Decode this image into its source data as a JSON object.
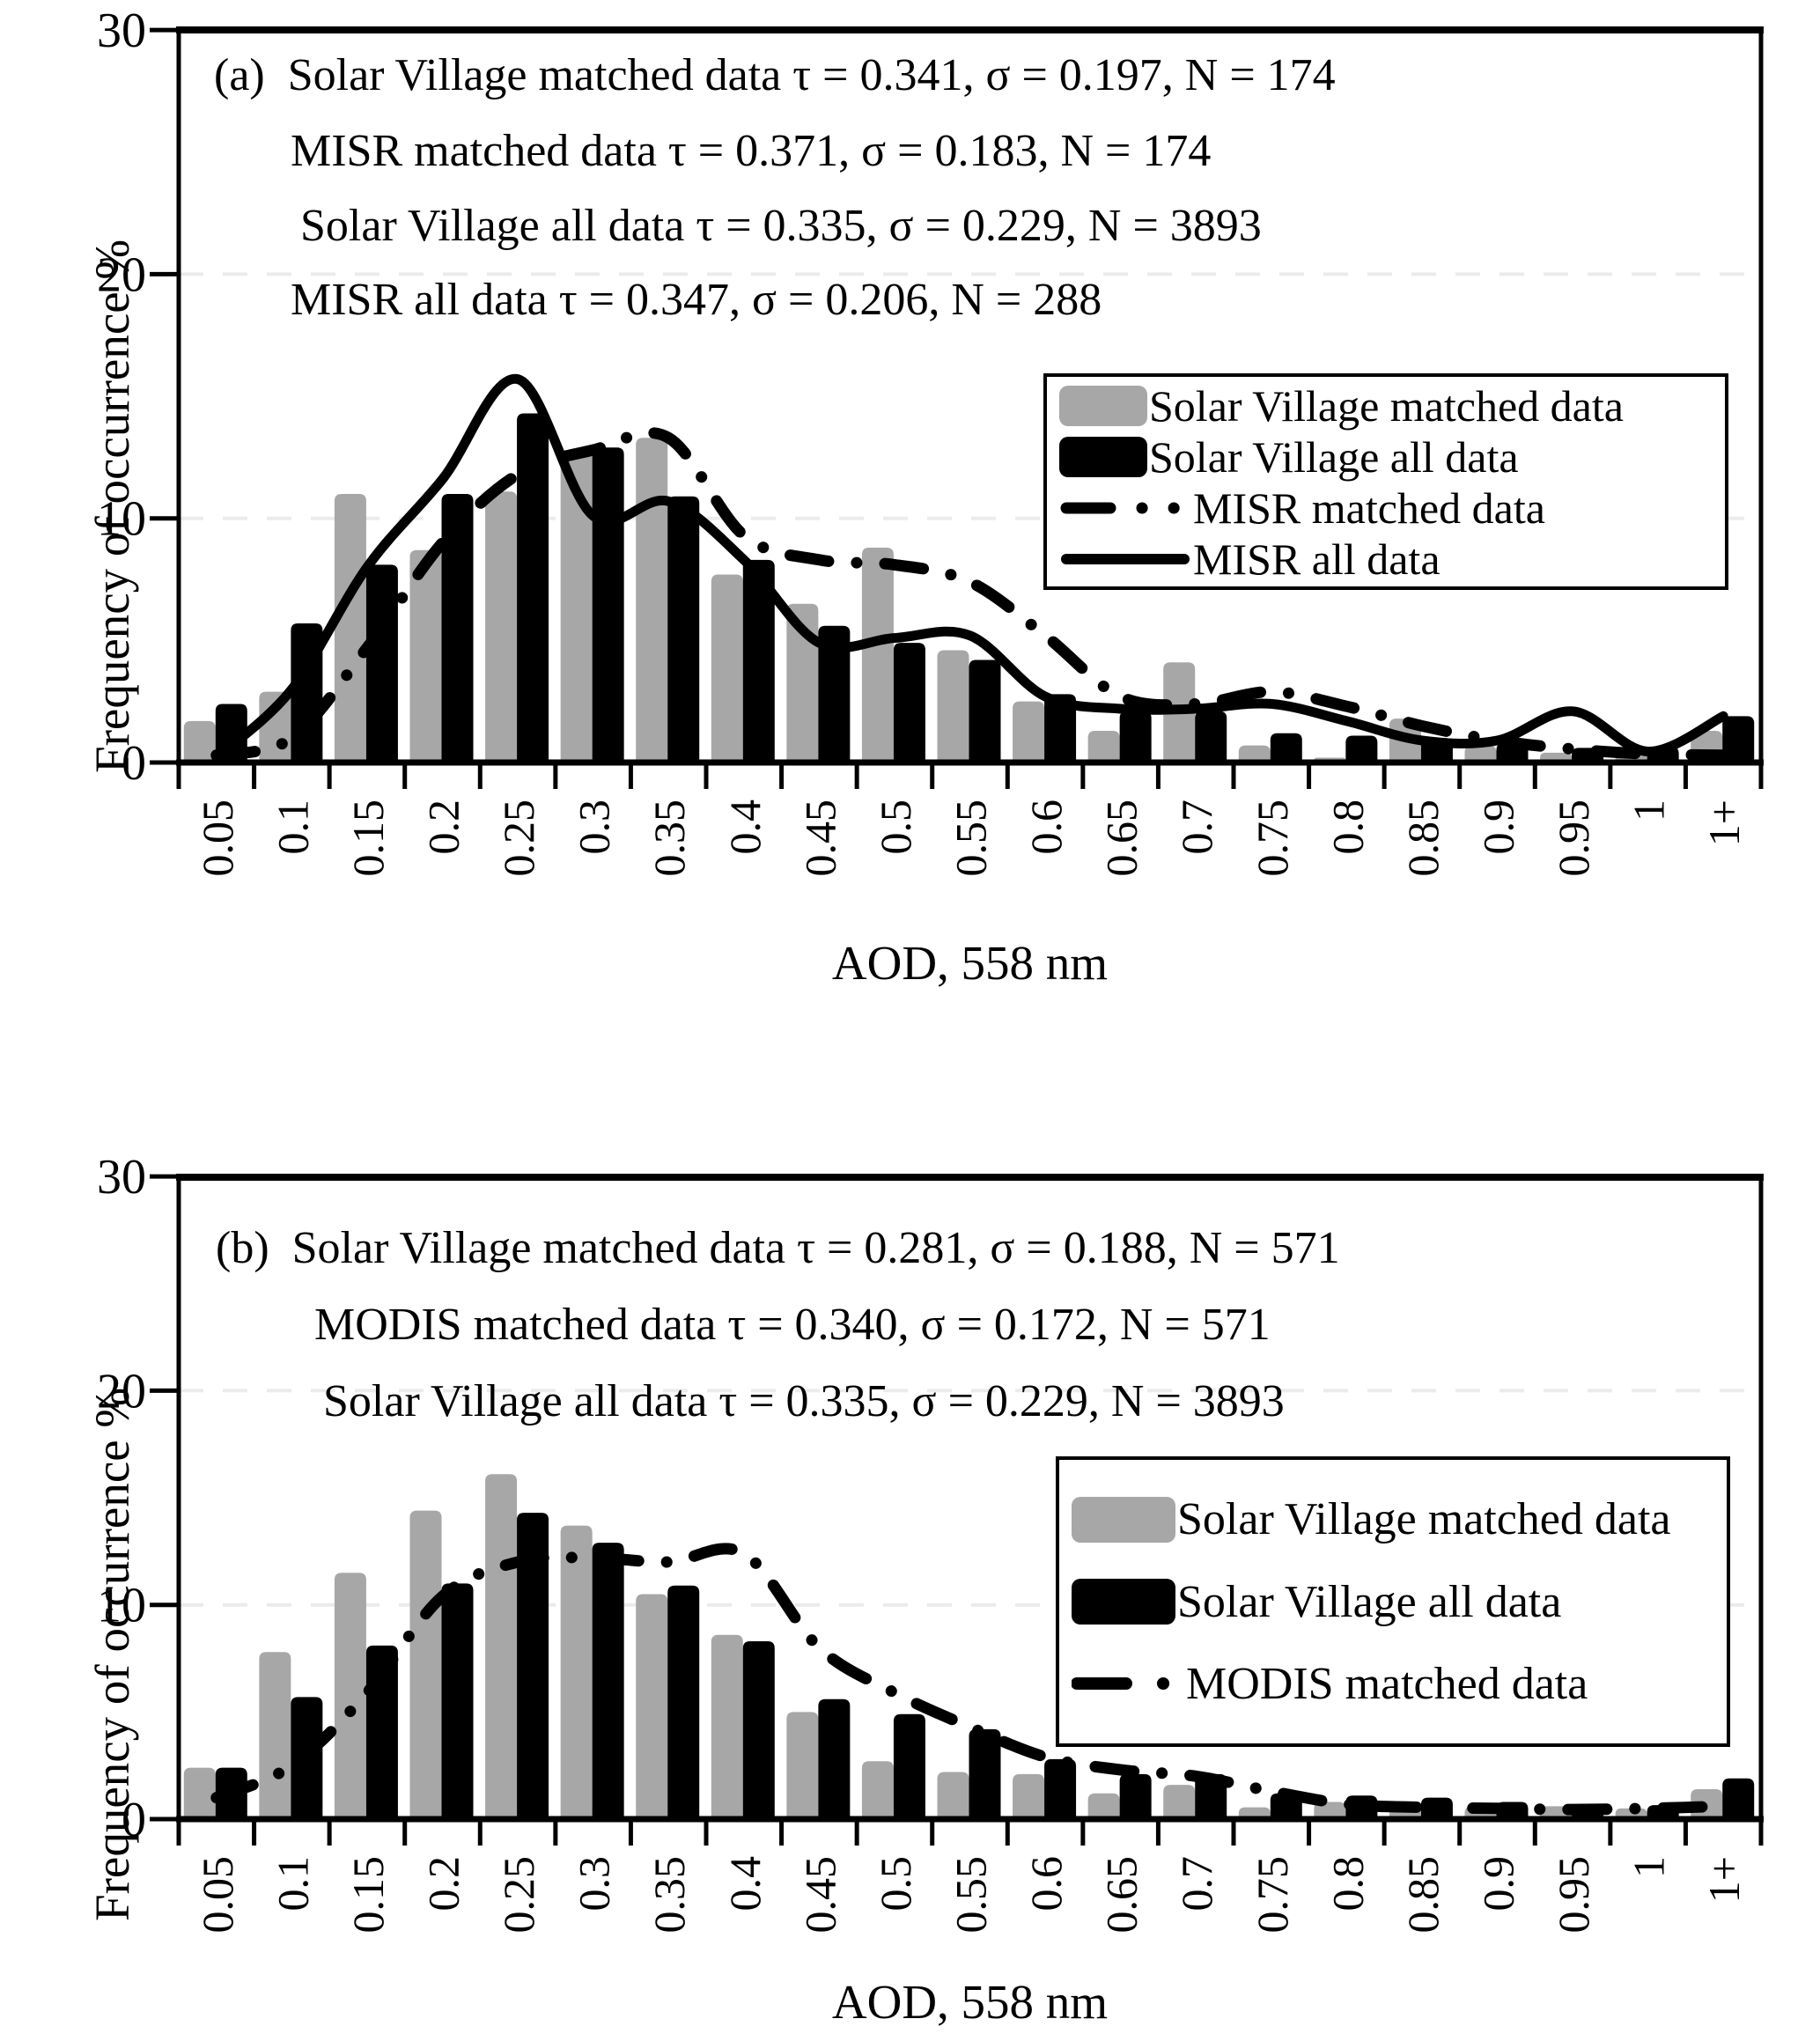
{
  "figure": {
    "panel_count": 2,
    "background": "#ffffff",
    "colors": {
      "bar_gray": "#a7a7a7",
      "bar_black": "#000000",
      "line": "#000000",
      "gridline": "#ebebeb"
    }
  },
  "chart_data": [
    {
      "type": "bar",
      "panel_tag": "(a)",
      "annotations": [
        "Solar Village matched data τ = 0.341, σ = 0.197, N = 174",
        "MISR matched data τ = 0.371, σ = 0.183, N = 174",
        "Solar Village all data τ = 0.335, σ = 0.229, N = 3893",
        "MISR all data τ = 0.347, σ = 0.206, N = 288"
      ],
      "categories": [
        "0.05",
        "0.1",
        "0.15",
        "0.2",
        "0.25",
        "0.3",
        "0.35",
        "0.4",
        "0.45",
        "0.5",
        "0.55",
        "0.6",
        "0.65",
        "0.7",
        "0.75",
        "0.8",
        "0.85",
        "0.9",
        "0.95",
        "1",
        "1+"
      ],
      "series": [
        {
          "name": "Solar Village matched data",
          "kind": "bar",
          "color": "#a7a7a7",
          "values": [
            1.7,
            2.9,
            11.0,
            8.7,
            11.1,
            12.8,
            13.3,
            7.7,
            6.5,
            8.8,
            4.6,
            2.5,
            1.3,
            4.1,
            0.7,
            0.2,
            1.8,
            0.7,
            0.4,
            0.6,
            1.3
          ]
        },
        {
          "name": "Solar Village all data",
          "kind": "bar",
          "color": "#000000",
          "values": [
            2.4,
            5.7,
            8.1,
            11.0,
            14.3,
            12.9,
            10.9,
            8.3,
            5.6,
            4.9,
            4.2,
            2.8,
            2.1,
            2.1,
            1.2,
            1.1,
            1.0,
            0.8,
            0.6,
            0.65,
            1.9
          ]
        },
        {
          "name": "MISR matched data",
          "kind": "line",
          "style": "dash-dot",
          "color": "#000000",
          "values": [
            0.3,
            1.0,
            4.7,
            9.0,
            11.8,
            12.8,
            13.3,
            9.3,
            8.3,
            8.1,
            7.4,
            5.2,
            2.7,
            2.4,
            2.9,
            2.3,
            1.5,
            0.9,
            0.55,
            0.35,
            0.3
          ]
        },
        {
          "name": "MISR all data",
          "kind": "line",
          "style": "solid",
          "color": "#000000",
          "values": [
            0.2,
            3.0,
            8.0,
            11.6,
            15.7,
            10.1,
            10.7,
            8.3,
            4.9,
            5.1,
            5.2,
            2.7,
            2.2,
            2.2,
            2.4,
            1.7,
            0.9,
            0.9,
            2.1,
            0.45,
            1.9
          ]
        }
      ],
      "xlabel": "AOD, 558 nm",
      "ylabel": "Frequency of occurrence %",
      "ylim": [
        0,
        30
      ],
      "yticks": [
        0,
        10,
        20,
        30
      ],
      "grid": "light dashed horizontal lines at 10 and 20",
      "legend_position": "upper right inside plot"
    },
    {
      "type": "bar",
      "panel_tag": "(b)",
      "annotations": [
        "Solar Village matched data τ = 0.281, σ = 0.188, N = 571",
        "MODIS matched data τ = 0.340, σ = 0.172, N = 571",
        "Solar Village all data τ = 0.335, σ = 0.229, N = 3893"
      ],
      "categories": [
        "0.05",
        "0.1",
        "0.15",
        "0.2",
        "0.25",
        "0.3",
        "0.35",
        "0.4",
        "0.45",
        "0.5",
        "0.55",
        "0.6",
        "0.65",
        "0.7",
        "0.75",
        "0.8",
        "0.85",
        "0.9",
        "0.95",
        "1",
        "1+"
      ],
      "series": [
        {
          "name": "Solar Village matched data",
          "kind": "bar",
          "color": "#a7a7a7",
          "values": [
            2.4,
            7.8,
            11.5,
            14.4,
            16.1,
            13.7,
            10.5,
            8.6,
            5.0,
            2.7,
            2.2,
            2.1,
            1.2,
            1.6,
            0.55,
            0.8,
            0.6,
            0.6,
            0.6,
            0.5,
            1.4
          ]
        },
        {
          "name": "Solar Village all data",
          "kind": "bar",
          "color": "#000000",
          "values": [
            2.4,
            5.7,
            8.1,
            11.0,
            14.3,
            12.9,
            10.9,
            8.3,
            5.6,
            4.9,
            4.2,
            2.8,
            2.1,
            2.1,
            1.2,
            1.1,
            1.0,
            0.8,
            0.6,
            0.65,
            1.9
          ]
        },
        {
          "name": "MODIS matched data",
          "kind": "line",
          "style": "dash-dot",
          "color": "#000000",
          "values": [
            1.0,
            2.5,
            5.9,
            10.4,
            12.0,
            12.2,
            12.0,
            12.4,
            8.0,
            5.9,
            4.3,
            2.9,
            2.3,
            2.0,
            1.3,
            0.7,
            0.55,
            0.5,
            0.45,
            0.5,
            0.6
          ]
        }
      ],
      "xlabel": "AOD, 558 nm",
      "ylabel": "Frequency of occurrence %",
      "ylim": [
        0,
        30
      ],
      "yticks": [
        0,
        10,
        20,
        30
      ],
      "grid": "light dashed horizontal lines at 10 and 20",
      "legend_position": "lower right inside plot"
    }
  ]
}
